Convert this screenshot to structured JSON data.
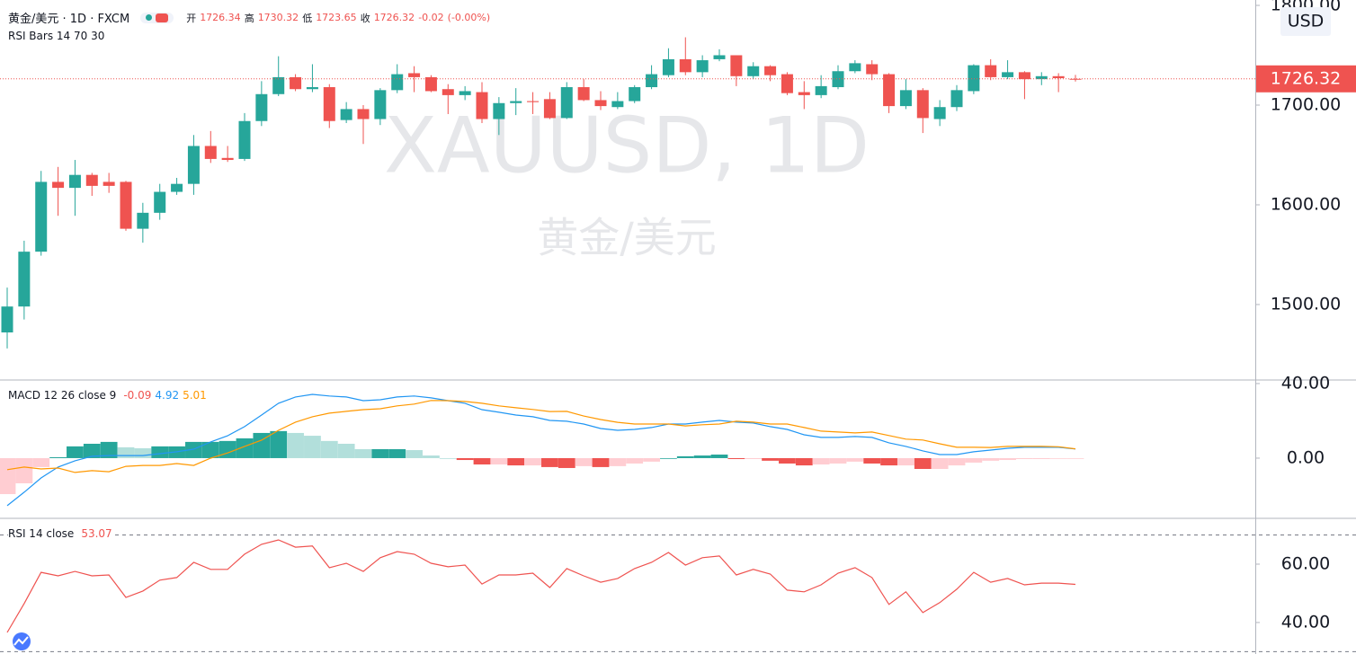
{
  "chart_data": [
    {
      "type": "candlestick",
      "title": "黄金/美元 · 1D · FXCM",
      "ohlc_labels": [
        "开",
        "高",
        "低",
        "收"
      ],
      "change": -0.02,
      "change_percent_label": "(-0.00%)",
      "indicator": "RSI Bars 14 70 30",
      "watermark": [
        "XAUUSD, 1D",
        "黄金/美元"
      ],
      "currency": "USD",
      "up_color": "#26a69a",
      "down_color": "#ef5350",
      "ylim": [
        1424.3,
        1805.4
      ],
      "yticks": [
        {
          "value": 1800,
          "label": "1800.00"
        },
        {
          "value": 1700,
          "label": "1700.00"
        },
        {
          "value": 1600,
          "label": "1600.00"
        },
        {
          "value": 1500,
          "label": "1500.00"
        }
      ],
      "open": [
        1472,
        1498,
        1553,
        1623,
        1617,
        1630,
        1623,
        1623,
        1576,
        1592,
        1613,
        1621,
        1659,
        1647,
        1646,
        1684,
        1711,
        1728,
        1716,
        1718,
        1685,
        1696,
        1686,
        1715,
        1732,
        1728,
        1716,
        1710,
        1713,
        1686,
        1702,
        1704,
        1706,
        1687,
        1718,
        1705,
        1698,
        1704,
        1718,
        1730,
        1746,
        1733,
        1746,
        1750,
        1729,
        1739,
        1731,
        1713,
        1710,
        1718,
        1734,
        1741,
        1731,
        1699,
        1715,
        1686,
        1698,
        1714,
        1740,
        1728,
        1733,
        1726,
        1729,
        1726.34
      ],
      "high": [
        1517,
        1564,
        1634,
        1638,
        1645,
        1632,
        1632,
        1624,
        1602,
        1621,
        1627,
        1670,
        1674,
        1659,
        1692,
        1724,
        1749,
        1731,
        1741,
        1721,
        1703,
        1700,
        1717,
        1741,
        1739,
        1730,
        1721,
        1719,
        1723,
        1708,
        1717,
        1713,
        1713,
        1723,
        1726,
        1714,
        1713,
        1720,
        1740,
        1757,
        1768,
        1750,
        1756,
        1750,
        1743,
        1740,
        1733,
        1724,
        1730,
        1740,
        1745,
        1745,
        1732,
        1726,
        1717,
        1705,
        1720,
        1741,
        1746,
        1745,
        1734,
        1733,
        1732,
        1730.32
      ],
      "low": [
        1456,
        1485,
        1549,
        1589,
        1589,
        1609,
        1612,
        1574,
        1562,
        1585,
        1610,
        1610,
        1642,
        1643,
        1644,
        1679,
        1709,
        1714,
        1713,
        1677,
        1682,
        1661,
        1680,
        1712,
        1713,
        1713,
        1691,
        1705,
        1682,
        1670,
        1690,
        1691,
        1686,
        1686,
        1704,
        1695,
        1696,
        1702,
        1716,
        1728,
        1730,
        1728,
        1744,
        1719,
        1726,
        1724,
        1710,
        1696,
        1707,
        1716,
        1732,
        1725,
        1692,
        1696,
        1672,
        1679,
        1694,
        1711,
        1725,
        1726,
        1706,
        1720,
        1713,
        1723.65
      ],
      "close": [
        1498,
        1553,
        1623,
        1617,
        1630,
        1619,
        1619,
        1576,
        1592,
        1613,
        1621,
        1659,
        1646,
        1645,
        1684,
        1711,
        1728,
        1716,
        1718,
        1684,
        1696,
        1686,
        1715,
        1731,
        1728,
        1714,
        1710,
        1714,
        1686,
        1702,
        1704,
        1703,
        1687,
        1718,
        1705,
        1699,
        1704,
        1718,
        1731,
        1746,
        1733,
        1745,
        1750,
        1729,
        1739,
        1730,
        1712,
        1710,
        1719,
        1734,
        1742,
        1731,
        1699,
        1715,
        1687,
        1698,
        1715,
        1740,
        1728,
        1733,
        1726,
        1729,
        1727,
        1726.32
      ]
    },
    {
      "type": "macd",
      "title": "MACD 12 26 close 9",
      "ylim": [
        -32.3,
        41.9
      ],
      "yticks": [
        {
          "value": 40,
          "label": "40.00"
        },
        {
          "value": 0,
          "label": "0.00"
        }
      ],
      "histogram_colors": [
        "#26a69a",
        "#b2dfdb",
        "#ffcdd2",
        "#ef5350"
      ],
      "histogram": [
        -19.3,
        -13.5,
        -4.8,
        0.5,
        6.3,
        7.7,
        8.7,
        5.8,
        5.3,
        6.3,
        6.3,
        8.7,
        8.7,
        9.2,
        10.6,
        13.5,
        14.5,
        13.5,
        12,
        9.2,
        7.7,
        4.8,
        4.8,
        4.8,
        4.3,
        1.4,
        0,
        -1,
        -3.4,
        -3.4,
        -3.9,
        -3.9,
        -4.8,
        -5.3,
        -4.3,
        -4.8,
        -4.3,
        -2.9,
        -1.9,
        0,
        1,
        1.4,
        1.9,
        -0.5,
        -0.5,
        -1.4,
        -2.9,
        -3.9,
        -3.4,
        -2.9,
        -1.9,
        -2.9,
        -3.9,
        -3.9,
        -5.8,
        -5.8,
        -3.9,
        -2.4,
        -1.4,
        -1,
        -0.5,
        -0.5,
        -0.3,
        -0.09
      ],
      "series": [
        {
          "name": "MACD",
          "color": "#2196f3",
          "values": [
            -25.5,
            -18.3,
            -10.6,
            -4.8,
            -1.4,
            1,
            1.4,
            1.4,
            1.4,
            2.4,
            3.4,
            4.8,
            8.7,
            12,
            16.9,
            23.1,
            29.4,
            32.8,
            34.2,
            33.3,
            32.8,
            30.8,
            31.3,
            32.8,
            33.3,
            32.3,
            30.8,
            29.4,
            26,
            24.6,
            23.1,
            22.2,
            20.2,
            19.8,
            18.3,
            15.9,
            14.9,
            15.4,
            16.4,
            18.3,
            18.3,
            19.3,
            20.2,
            19.3,
            18.8,
            16.9,
            15.4,
            12.5,
            11.1,
            11.1,
            11.6,
            11.1,
            8.2,
            6.3,
            3.9,
            1.9,
            1.9,
            3.4,
            4.3,
            5.3,
            5.8,
            5.8,
            5.8,
            4.92
          ]
        },
        {
          "name": "Signal",
          "color": "#ff9800",
          "values": [
            -6.2,
            -4.8,
            -5.8,
            -5.3,
            -7.7,
            -6.7,
            -7.3,
            -4.4,
            -3.9,
            -3.9,
            -2.9,
            -3.9,
            0,
            2.8,
            6.3,
            9.6,
            14.9,
            19.3,
            22.2,
            24.1,
            25.1,
            26,
            26.5,
            28,
            29,
            30.9,
            30.8,
            30.4,
            29.4,
            28,
            27,
            26.1,
            25,
            25.1,
            22.6,
            20.7,
            19.2,
            18.3,
            18.3,
            18.3,
            17.3,
            17.9,
            18.3,
            19.8,
            19.3,
            18.3,
            18.3,
            16.4,
            14.5,
            14,
            13.5,
            14,
            12.1,
            10.2,
            9.7,
            7.7,
            5.8,
            5.8,
            5.7,
            6.3,
            6.3,
            6.3,
            6.1,
            5.01
          ]
        }
      ]
    },
    {
      "type": "line",
      "title": "RSI 14 close",
      "color": "#ef5350",
      "ylim": [
        29.2,
        75.7
      ],
      "yticks": [
        {
          "value": 60,
          "label": "60.00"
        },
        {
          "value": 40,
          "label": "40.00"
        }
      ],
      "bands": [
        70,
        30
      ],
      "values": [
        36.6,
        46.5,
        57.2,
        56,
        57.5,
        56,
        56.3,
        48.6,
        50.8,
        54.5,
        55.4,
        60.6,
        58.2,
        58.2,
        63.4,
        66.8,
        68.3,
        65.8,
        66.2,
        58.8,
        60.3,
        57.5,
        62.2,
        64.3,
        63.4,
        60.3,
        59.1,
        59.7,
        53.2,
        56.3,
        56.3,
        56.9,
        52,
        58.5,
        56,
        53.8,
        55.1,
        58.5,
        60.6,
        64,
        59.7,
        62.2,
        62.8,
        56.3,
        58.2,
        56.6,
        51.1,
        50.5,
        52.9,
        56.9,
        58.8,
        55.4,
        46.2,
        50.5,
        43.4,
        46.8,
        51.4,
        57.2,
        53.8,
        55.1,
        52.9,
        53.5,
        53.5,
        53.07
      ]
    }
  ]
}
